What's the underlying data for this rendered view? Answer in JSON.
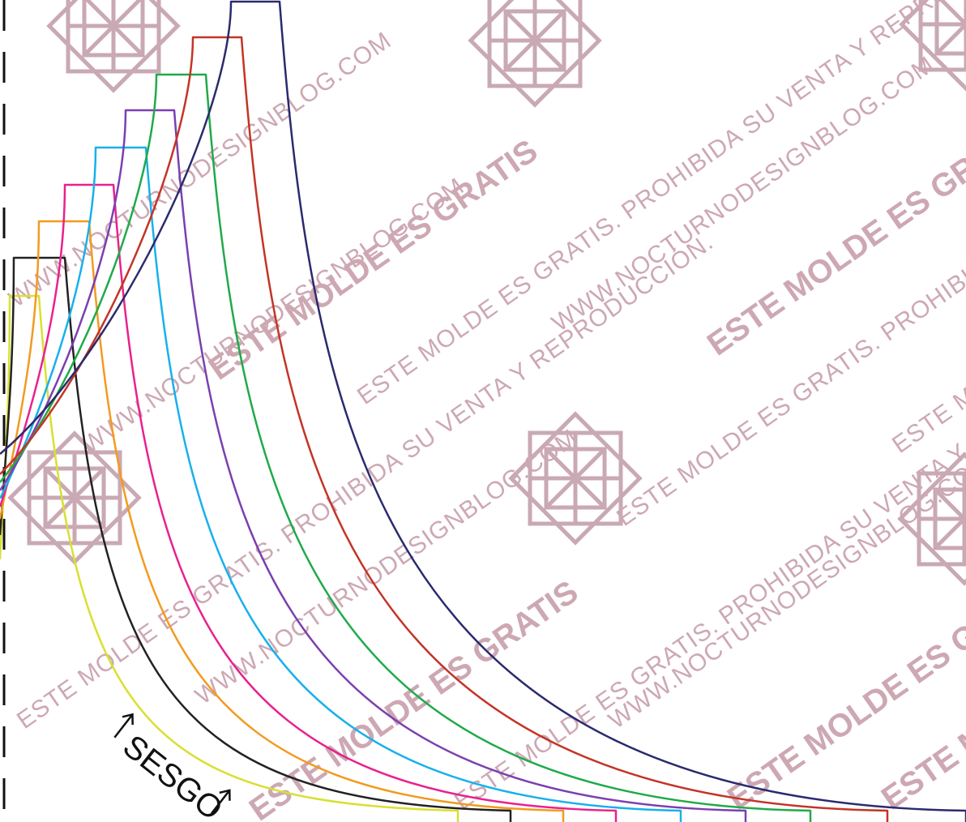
{
  "watermark": {
    "lines": [
      "WWW.NOCTURNODESIGNBLOG.COM",
      "ESTE MOLDE ES GRATIS. PROHIBIDA SU VENTA Y REPRODUCCIÓN.",
      "ESTE MOLDE ES GRATIS"
    ],
    "color": "#cda8b3"
  },
  "grain_label": "SESGO",
  "size_colors": [
    "#d8e030",
    "#222222",
    "#f39a1f",
    "#e8218f",
    "#18b0ec",
    "#7b3fb0",
    "#1faa4a",
    "#c33427",
    "#2a2a6e"
  ],
  "icons": [
    "diamond-lattice-logo",
    "arrow-up-icon"
  ]
}
